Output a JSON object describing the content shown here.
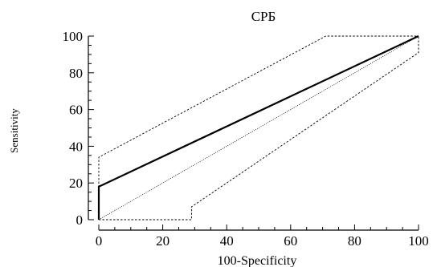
{
  "chart_data": {
    "type": "line",
    "title": "CPБ",
    "xlabel": "100-Specificity",
    "ylabel": "Sensitivity",
    "xlim": [
      0,
      100
    ],
    "ylim": [
      0,
      100
    ],
    "xticks": [
      0,
      20,
      40,
      60,
      80,
      100
    ],
    "yticks": [
      0,
      20,
      40,
      60,
      80,
      100
    ],
    "grid": false,
    "series": [
      {
        "role": "roc-curve",
        "style": "solid-thick",
        "color": "#000000",
        "x": [
          0,
          0,
          100
        ],
        "y": [
          0,
          18,
          100
        ]
      },
      {
        "role": "confidence-upper",
        "style": "dashed",
        "color": "#000000",
        "x": [
          0,
          0,
          71,
          100
        ],
        "y": [
          0,
          34,
          100,
          100
        ]
      },
      {
        "role": "confidence-lower",
        "style": "dashed",
        "color": "#000000",
        "x": [
          0,
          29,
          29,
          100,
          100
        ],
        "y": [
          0,
          0,
          7,
          91,
          100
        ]
      },
      {
        "role": "reference-diagonal",
        "style": "dotted",
        "color": "#000000",
        "x": [
          0,
          100
        ],
        "y": [
          0,
          100
        ]
      }
    ]
  }
}
